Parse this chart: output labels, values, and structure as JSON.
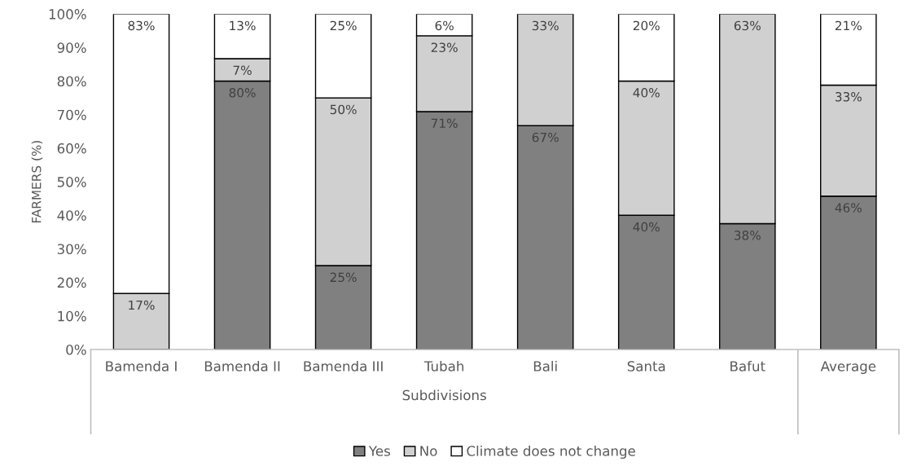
{
  "chart_data": {
    "type": "bar",
    "stacked": true,
    "ylabel": "FARMERS (%)",
    "xlabel": "Subdivisions",
    "categories": [
      "Bamenda I",
      "Bamenda II",
      "Bamenda III",
      "Tubah",
      "Bali",
      "Santa",
      "Bafut",
      "Average"
    ],
    "series": [
      {
        "name": "Yes",
        "color": "#808080",
        "values": [
          null,
          80,
          25,
          70.9,
          66.7,
          40,
          37.5,
          45.7
        ],
        "value_labels": [
          null,
          "80%",
          "25%",
          "71%",
          "67%",
          "40%",
          "38%",
          "46%"
        ]
      },
      {
        "name": "No",
        "color": "#d0d0d0",
        "values": [
          16.7,
          6.7,
          50,
          22.6,
          33.3,
          40,
          62.5,
          33.1
        ],
        "value_labels": [
          "17%",
          "7%",
          "50%",
          "23%",
          "33%",
          "40%",
          "63%",
          "33%"
        ]
      },
      {
        "name": "Climate does not change",
        "color": "#ffffff",
        "values": [
          83.3,
          13.3,
          25,
          6.5,
          null,
          20,
          null,
          21.2
        ],
        "value_labels": [
          "83%",
          "13%",
          "25%",
          "6%",
          null,
          "20%",
          null,
          "21%"
        ]
      }
    ],
    "ylim": [
      0,
      100
    ],
    "yticks": [
      {
        "value": 0,
        "label": "0%"
      },
      {
        "value": 10,
        "label": "10%"
      },
      {
        "value": 20,
        "label": "20%"
      },
      {
        "value": 30,
        "label": "30%"
      },
      {
        "value": 40,
        "label": "40%"
      },
      {
        "value": 50,
        "label": "50%"
      },
      {
        "value": 60,
        "label": "60%"
      },
      {
        "value": 70,
        "label": "70%"
      },
      {
        "value": 80,
        "label": "80%"
      },
      {
        "value": 90,
        "label": "90%"
      },
      {
        "value": 100,
        "label": "100%"
      }
    ],
    "grid": false,
    "legend": "bottom"
  }
}
